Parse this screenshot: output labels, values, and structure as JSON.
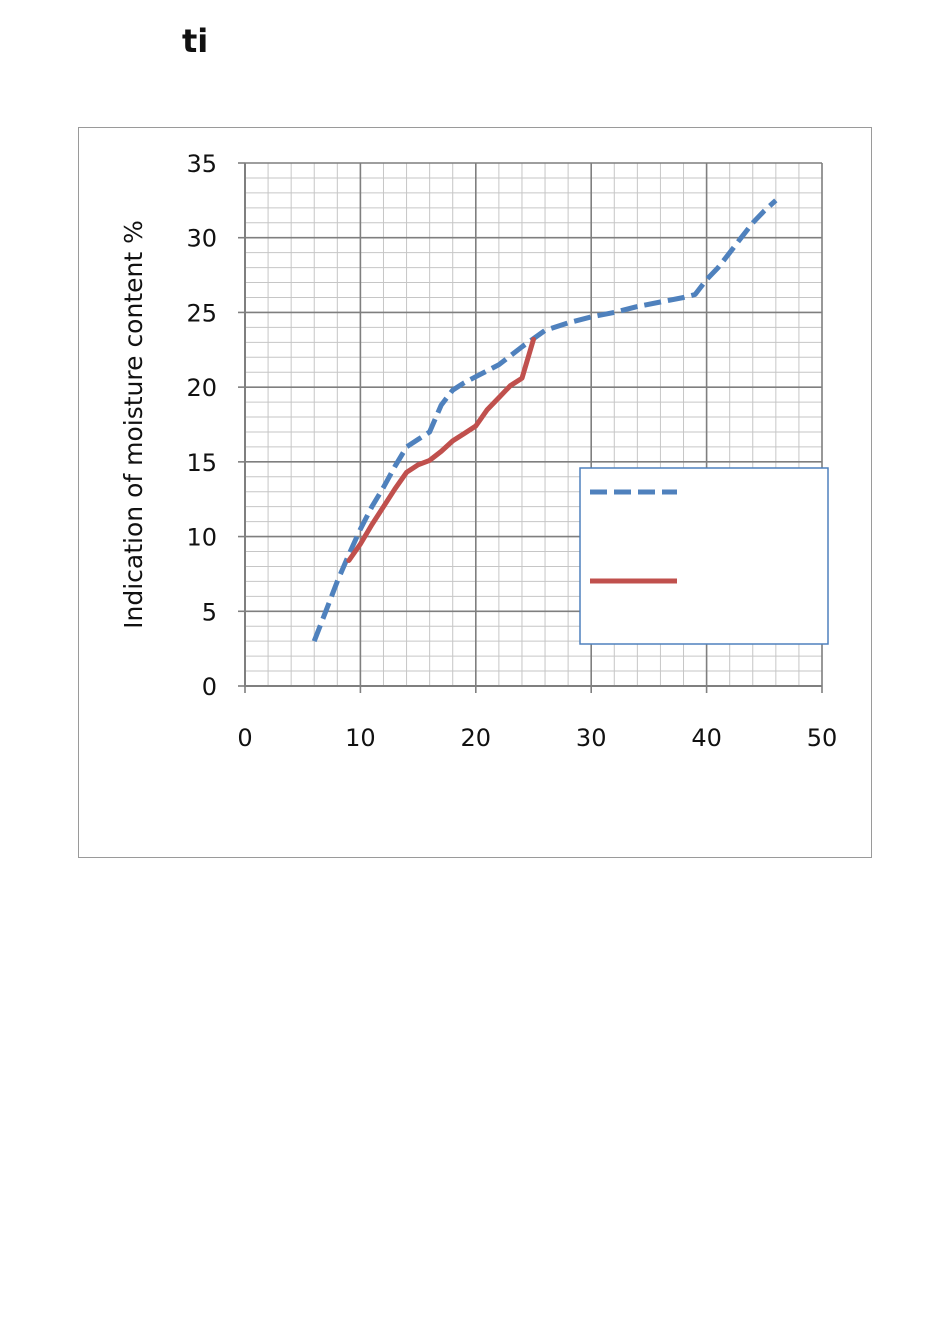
{
  "page": {
    "top_text": "ti"
  },
  "chart_data": {
    "type": "line",
    "title": "",
    "xlabel": "",
    "ylabel": "Indication of moisture content %",
    "xlim": [
      0,
      50
    ],
    "ylim": [
      0,
      35
    ],
    "x_ticks": [
      0,
      10,
      20,
      30,
      40,
      50
    ],
    "y_ticks": [
      0,
      5,
      10,
      15,
      20,
      25,
      30,
      35
    ],
    "grid": true,
    "legend": {
      "position": "right",
      "entries": [
        "",
        ""
      ]
    },
    "series": [
      {
        "style": "dashed",
        "color": "#4f81bd",
        "x": [
          6,
          7,
          8,
          9,
          10,
          11,
          12,
          13,
          14,
          15,
          16,
          17,
          18,
          19,
          20,
          22,
          24,
          26,
          28,
          30,
          32,
          34,
          36,
          38,
          39,
          40,
          41,
          42,
          43,
          44,
          45,
          46
        ],
        "y": [
          3,
          5,
          7,
          8.8,
          10.5,
          12,
          13.3,
          14.7,
          16,
          16.5,
          17,
          18.8,
          19.8,
          20.3,
          20.7,
          21.5,
          22.7,
          23.8,
          24.3,
          24.7,
          25,
          25.4,
          25.7,
          26,
          26.2,
          27.2,
          28,
          29,
          30,
          31,
          31.8,
          32.5
        ]
      },
      {
        "style": "solid",
        "color": "#c0504d",
        "x": [
          9,
          10,
          11,
          12,
          13,
          14,
          15,
          16,
          17,
          18,
          19,
          20,
          21,
          22,
          23,
          24,
          25
        ],
        "y": [
          8.4,
          9.5,
          10.8,
          12,
          13.2,
          14.3,
          14.8,
          15.1,
          15.7,
          16.4,
          16.9,
          17.4,
          18.5,
          19.3,
          20.1,
          20.6,
          23.2
        ]
      }
    ]
  }
}
